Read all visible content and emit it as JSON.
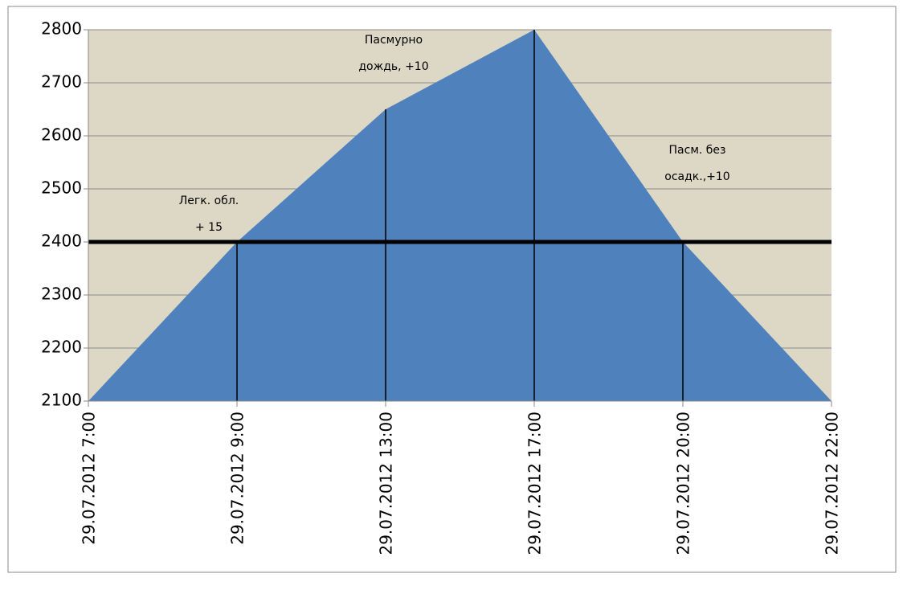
{
  "chart_data": {
    "type": "area",
    "categories": [
      "29.07.2012 7:00",
      "29.07.2012 9:00",
      "29.07.2012 13:00",
      "29.07.2012 17:00",
      "29.07.2012 20:00",
      "29.07.2012 22:00"
    ],
    "values": [
      2100,
      2400,
      2650,
      2800,
      2400,
      2100
    ],
    "color": "#4f81bd",
    "background": "#ddd8c5",
    "reference_line": 2400,
    "drop_lines": true,
    "ylim": [
      2100,
      2800
    ],
    "yticks": [
      2100,
      2200,
      2300,
      2400,
      2500,
      2600,
      2700,
      2800
    ],
    "grid": true,
    "annotations": [
      [
        "Легк. обл.",
        "+ 15"
      ],
      [
        "Пасмурно",
        "дождь, +10"
      ],
      [
        "Пасм. без",
        "осадк.,+10"
      ]
    ]
  }
}
